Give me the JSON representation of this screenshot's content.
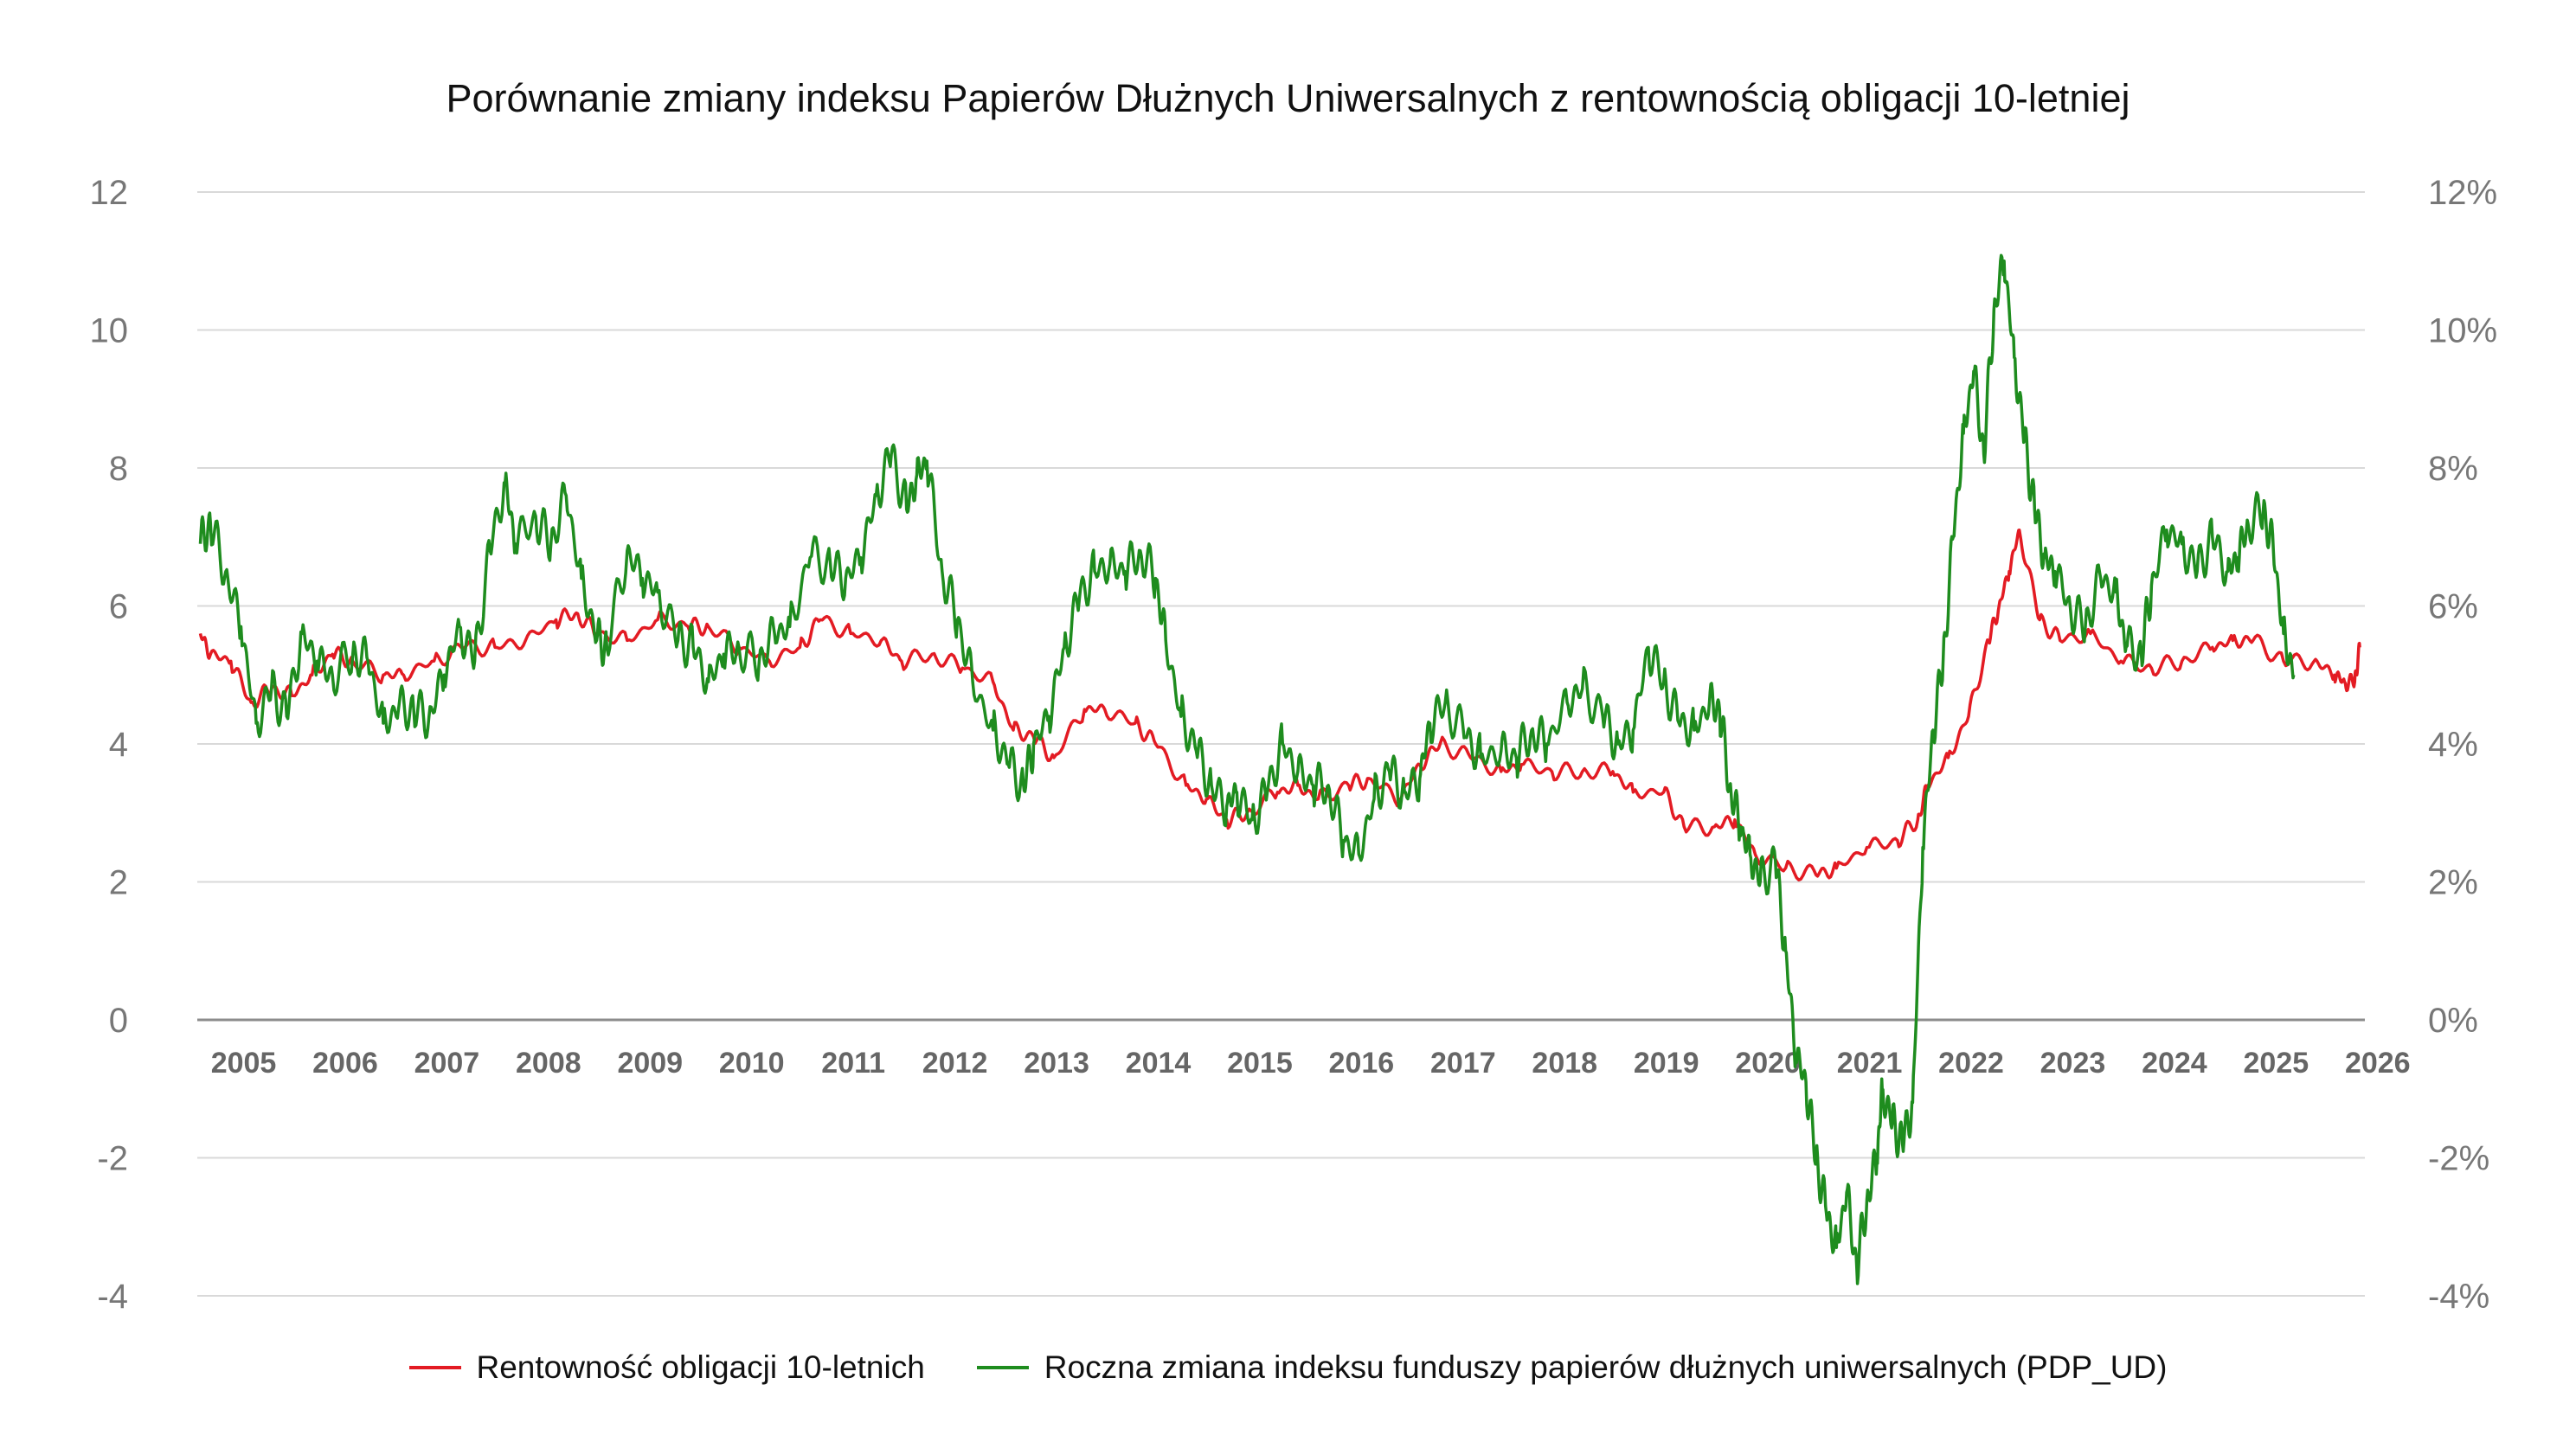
{
  "chart_data": {
    "type": "line",
    "title": "Porównanie zmiany indeksu Papierów Dłużnych Uniwersalnych z rentownością obligacji 10-letniej",
    "xlabel": "",
    "ylabel": "",
    "x_ticks": [
      "2005",
      "2006",
      "2007",
      "2008",
      "2009",
      "2010",
      "2011",
      "2012",
      "2013",
      "2014",
      "2015",
      "2016",
      "2017",
      "2018",
      "2019",
      "2020",
      "2021",
      "2022",
      "2023",
      "2024",
      "2025",
      "2026"
    ],
    "x_range": [
      2004.97,
      2026.3
    ],
    "y_left": {
      "ticks": [
        "12",
        "10",
        "8",
        "6",
        "4",
        "2",
        "0",
        "-2",
        "-4"
      ],
      "range": [
        -4,
        12
      ]
    },
    "y_right": {
      "ticks": [
        "12%",
        "10%",
        "8%",
        "6%",
        "4%",
        "2%",
        "0%",
        "-2%",
        "-4%"
      ],
      "range": [
        -4,
        12
      ]
    },
    "grid": true,
    "legend_position": "bottom",
    "series": [
      {
        "name": "Rentowność obligacji 10-letnich",
        "color": "#e31b23",
        "axis": "left",
        "x": [
          2005.0,
          2005.1,
          2005.3,
          2005.5,
          2005.7,
          2005.9,
          2006.1,
          2006.3,
          2006.5,
          2006.8,
          2007.0,
          2007.3,
          2007.6,
          2007.9,
          2008.2,
          2008.5,
          2008.7,
          2008.9,
          2009.2,
          2009.5,
          2009.8,
          2010.0,
          2010.3,
          2010.6,
          2010.9,
          2011.1,
          2011.4,
          2011.7,
          2011.9,
          2012.2,
          2012.5,
          2012.8,
          2013.0,
          2013.2,
          2013.4,
          2013.7,
          2013.9,
          2014.2,
          2014.4,
          2014.7,
          2014.9,
          2015.1,
          2015.3,
          2015.6,
          2015.8,
          2016.0,
          2016.3,
          2016.5,
          2016.8,
          2017.0,
          2017.2,
          2017.5,
          2017.8,
          2018.0,
          2018.3,
          2018.6,
          2018.9,
          2019.1,
          2019.4,
          2019.6,
          2019.9,
          2020.1,
          2020.3,
          2020.6,
          2020.9,
          2021.1,
          2021.4,
          2021.7,
          2021.9,
          2022.0,
          2022.2,
          2022.4,
          2022.6,
          2022.7,
          2022.8,
          2022.9,
          2023.1,
          2023.3,
          2023.6,
          2023.9,
          2024.2,
          2024.5,
          2024.8,
          2025.0,
          2025.2,
          2025.5,
          2025.8,
          2026.0,
          2026.1,
          2026.2,
          2026.25
        ],
        "values": [
          5.6,
          5.3,
          5.2,
          4.6,
          4.8,
          4.7,
          5.0,
          5.3,
          5.2,
          5.0,
          5.0,
          5.2,
          5.4,
          5.4,
          5.5,
          5.8,
          5.9,
          5.6,
          5.5,
          5.8,
          5.7,
          5.7,
          5.4,
          5.2,
          5.4,
          5.8,
          5.6,
          5.5,
          5.2,
          5.3,
          5.1,
          4.9,
          4.2,
          4.1,
          3.8,
          4.5,
          4.5,
          4.3,
          4.0,
          3.4,
          3.2,
          2.9,
          3.0,
          3.3,
          3.4,
          3.2,
          3.4,
          3.5,
          3.2,
          3.7,
          4.0,
          3.8,
          3.6,
          3.7,
          3.6,
          3.6,
          3.6,
          3.3,
          3.3,
          2.8,
          2.8,
          2.9,
          2.4,
          2.2,
          2.1,
          2.2,
          2.5,
          2.6,
          2.9,
          3.4,
          3.8,
          4.4,
          5.5,
          6.0,
          6.5,
          7.1,
          5.8,
          5.5,
          5.6,
          5.2,
          5.1,
          5.2,
          5.4,
          5.5,
          5.5,
          5.2,
          5.2,
          5.0,
          4.9,
          4.9,
          5.4
        ]
      },
      {
        "name": "Roczna zmiana indeksu funduszy papierów dłużnych uniwersalnych (PDP_UD)",
        "color": "#1e8c1e",
        "axis": "right",
        "x": [
          2005.0,
          2005.1,
          2005.25,
          2005.4,
          2005.55,
          2005.7,
          2005.85,
          2006.0,
          2006.15,
          2006.3,
          2006.5,
          2006.65,
          2006.8,
          2006.95,
          2007.1,
          2007.25,
          2007.4,
          2007.55,
          2007.7,
          2007.85,
          2008.0,
          2008.1,
          2008.3,
          2008.45,
          2008.6,
          2008.75,
          2008.9,
          2009.0,
          2009.2,
          2009.35,
          2009.5,
          2009.7,
          2009.85,
          2010.0,
          2010.15,
          2010.3,
          2010.5,
          2010.65,
          2010.8,
          2011.0,
          2011.2,
          2011.35,
          2011.5,
          2011.65,
          2011.8,
          2011.95,
          2012.05,
          2012.15,
          2012.3,
          2012.45,
          2012.6,
          2012.8,
          2012.95,
          2013.1,
          2013.2,
          2013.35,
          2013.5,
          2013.65,
          2013.8,
          2013.95,
          2014.1,
          2014.25,
          2014.4,
          2014.5,
          2014.65,
          2014.8,
          2014.95,
          2015.1,
          2015.2,
          2015.35,
          2015.5,
          2015.65,
          2015.8,
          2015.95,
          2016.1,
          2016.25,
          2016.4,
          2016.55,
          2016.7,
          2016.85,
          2017.0,
          2017.1,
          2017.25,
          2017.45,
          2017.6,
          2017.8,
          2017.95,
          2018.1,
          2018.25,
          2018.45,
          2018.6,
          2018.8,
          2018.95,
          2019.1,
          2019.25,
          2019.4,
          2019.55,
          2019.7,
          2019.85,
          2019.95,
          2020.05,
          2020.15,
          2020.25,
          2020.35,
          2020.5,
          2020.6,
          2020.7,
          2020.8,
          2020.9,
          2021.0,
          2021.1,
          2021.2,
          2021.3,
          2021.4,
          2021.5,
          2021.55,
          2021.65,
          2021.75,
          2021.85,
          2021.95,
          2022.05,
          2022.15,
          2022.25,
          2022.35,
          2022.45,
          2022.55,
          2022.65,
          2022.75,
          2022.85,
          2022.95,
          2023.05,
          2023.15,
          2023.25,
          2023.4,
          2023.55,
          2023.7,
          2023.85,
          2023.95,
          2024.1,
          2024.2,
          2024.35,
          2024.5,
          2024.65,
          2024.8,
          2024.95,
          2025.05,
          2025.15,
          2025.3,
          2025.4,
          2025.5,
          2025.6
        ],
        "values": [
          6.9,
          7.2,
          6.5,
          5.7,
          4.3,
          4.8,
          4.4,
          5.6,
          5.2,
          5.0,
          5.3,
          5.2,
          4.3,
          4.5,
          4.5,
          4.4,
          5.0,
          5.7,
          5.2,
          6.8,
          7.8,
          6.9,
          7.3,
          6.9,
          7.6,
          6.4,
          5.5,
          5.4,
          6.8,
          6.4,
          6.2,
          5.5,
          5.4,
          4.9,
          5.3,
          5.4,
          5.2,
          5.6,
          5.7,
          6.7,
          6.6,
          6.4,
          6.7,
          7.6,
          8.2,
          7.4,
          7.9,
          8.1,
          6.5,
          5.8,
          4.9,
          4.2,
          3.7,
          3.4,
          4.0,
          4.4,
          5.4,
          6.1,
          6.5,
          6.6,
          6.5,
          6.8,
          6.4,
          5.5,
          4.4,
          3.9,
          3.4,
          3.1,
          3.3,
          2.9,
          3.3,
          4.0,
          3.6,
          3.4,
          3.4,
          2.6,
          2.4,
          3.2,
          3.6,
          3.3,
          3.5,
          4.3,
          4.6,
          4.1,
          3.8,
          3.9,
          3.8,
          4.2,
          4.0,
          4.6,
          4.8,
          4.4,
          4.0,
          4.2,
          5.4,
          4.9,
          4.3,
          4.2,
          4.6,
          4.5,
          3.4,
          2.8,
          2.4,
          2.0,
          2.3,
          1.0,
          -0.5,
          -0.9,
          -2.0,
          -2.8,
          -3.3,
          -2.5,
          -3.6,
          -2.6,
          -2.0,
          -1.0,
          -1.5,
          -1.8,
          -1.2,
          2.5,
          4.2,
          5.2,
          7.0,
          8.5,
          9.4,
          8.2,
          10.3,
          11.0,
          9.6,
          8.4,
          7.4,
          6.7,
          6.5,
          6.0,
          5.7,
          6.4,
          6.2,
          5.4,
          5.3,
          6.3,
          7.1,
          6.9,
          6.5,
          7.0,
          6.5,
          6.7,
          7.2,
          7.4,
          6.8,
          5.6,
          5.0
        ]
      }
    ]
  }
}
